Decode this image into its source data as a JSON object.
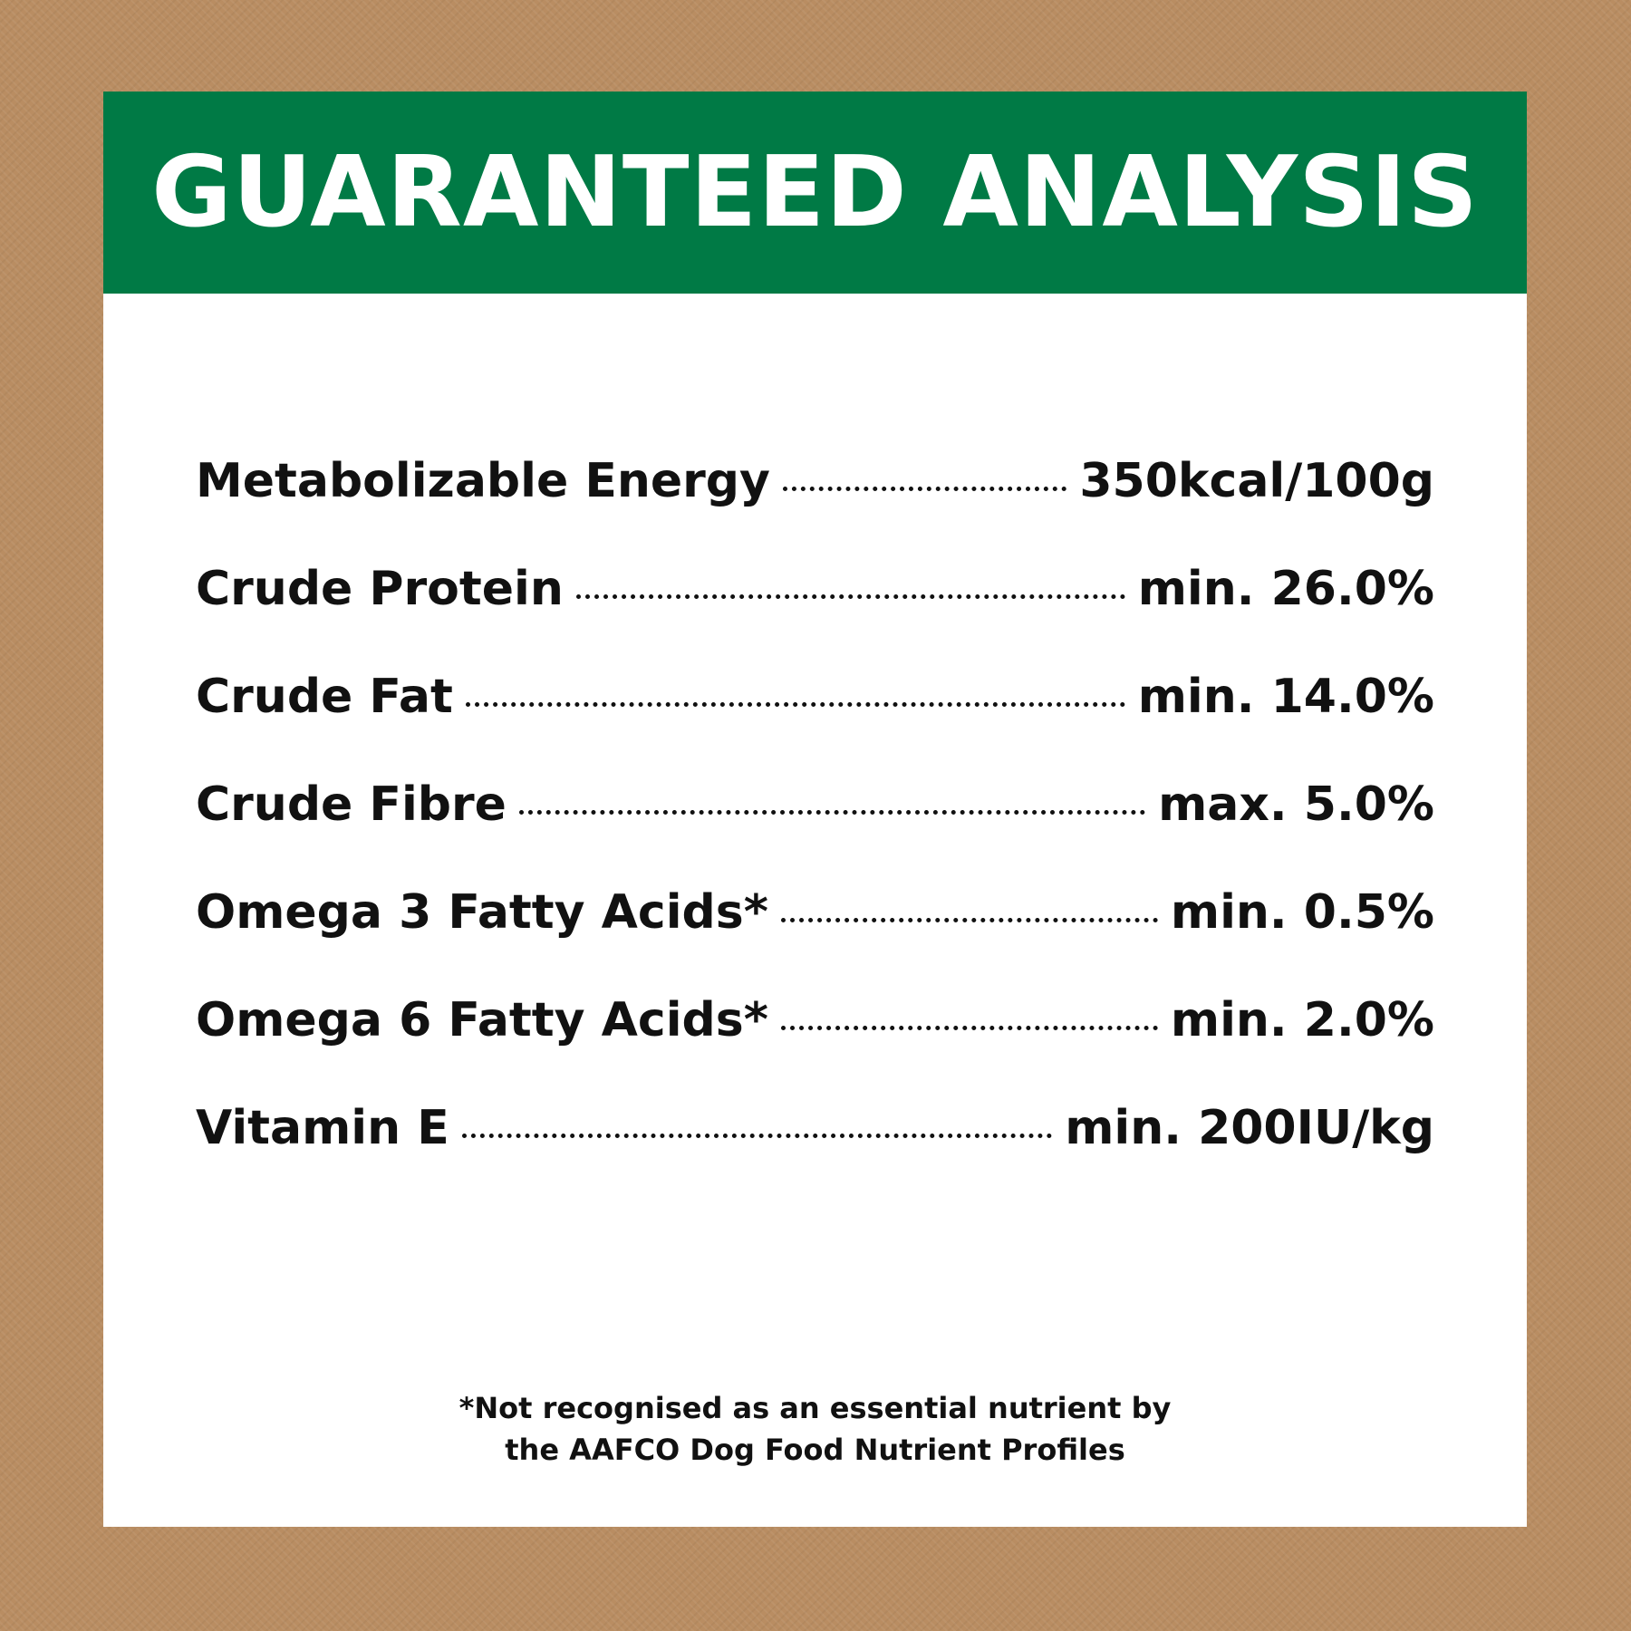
{
  "colors": {
    "background": "#b98d62",
    "header": "#007a45",
    "card": "#ffffff",
    "text": "#111111"
  },
  "title": "GUARANTEED ANALYSIS",
  "rows": [
    {
      "label": "Metabolizable Energy",
      "value": "350kcal/100g"
    },
    {
      "label": "Crude Protein",
      "value": "min. 26.0%"
    },
    {
      "label": "Crude Fat",
      "value": "min. 14.0%"
    },
    {
      "label": "Crude Fibre",
      "value": "max. 5.0%"
    },
    {
      "label": "Omega 3 Fatty Acids*",
      "value": "min. 0.5%"
    },
    {
      "label": "Omega 6 Fatty Acids*",
      "value": "min. 2.0%"
    },
    {
      "label": "Vitamin E",
      "value": "min. 200IU/kg"
    }
  ],
  "footnote": {
    "line1": "*Not recognised as an essential nutrient by",
    "line2": "the AAFCO Dog Food Nutrient Profiles"
  }
}
